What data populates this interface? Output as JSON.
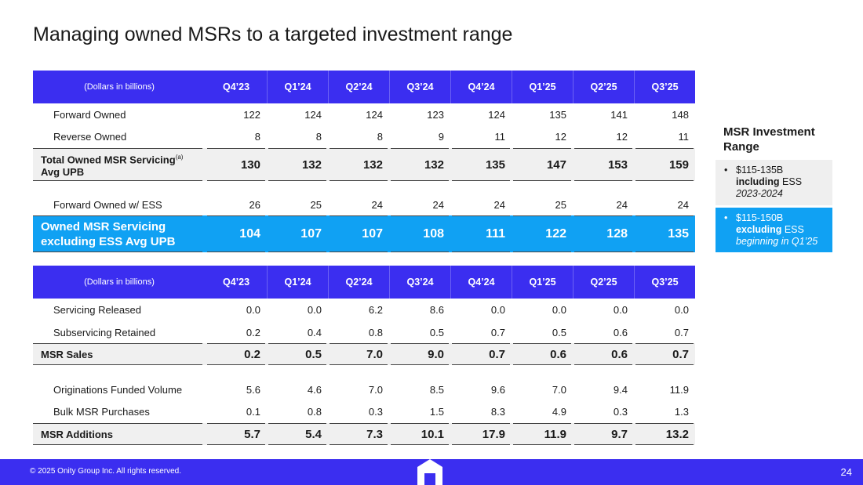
{
  "title": "Managing owned MSRs to a targeted investment range",
  "tables": [
    {
      "header": [
        "(Dollars in billions)",
        "Q4’23",
        "Q1’24",
        "Q2’24",
        "Q3’24",
        "Q4’24",
        "Q1’25",
        "Q2’25",
        "Q3’25"
      ],
      "rows": [
        {
          "label": "Forward Owned",
          "values": [
            "122",
            "124",
            "124",
            "123",
            "124",
            "135",
            "141",
            "148"
          ]
        },
        {
          "label": "Reverse Owned",
          "values": [
            "8",
            "8",
            "8",
            "9",
            "11",
            "12",
            "12",
            "11"
          ]
        },
        {
          "label": "Total Owned MSR Servicing",
          "label_note": "(a)",
          "label_line2": "Avg UPB",
          "values": [
            "130",
            "132",
            "132",
            "132",
            "135",
            "147",
            "153",
            "159"
          ]
        },
        {
          "label": "Forward Owned w/ ESS",
          "values": [
            "26",
            "25",
            "24",
            "24",
            "24",
            "25",
            "24",
            "24"
          ]
        },
        {
          "label": "Owned MSR Servicing excluding ESS Avg UPB",
          "values": [
            "104",
            "107",
            "107",
            "108",
            "111",
            "122",
            "128",
            "135"
          ]
        }
      ]
    },
    {
      "header": [
        "(Dollars in billions)",
        "Q4’23",
        "Q1’24",
        "Q2’24",
        "Q3’24",
        "Q4’24",
        "Q1’25",
        "Q2’25",
        "Q3’25"
      ],
      "rows": [
        {
          "label": "Servicing Released",
          "values": [
            "0.0",
            "0.0",
            "6.2",
            "8.6",
            "0.0",
            "0.0",
            "0.0",
            "0.0"
          ]
        },
        {
          "label": "Subservicing Retained",
          "values": [
            "0.2",
            "0.4",
            "0.8",
            "0.5",
            "0.7",
            "0.5",
            "0.6",
            "0.7"
          ]
        },
        {
          "label": "MSR Sales",
          "values": [
            "0.2",
            "0.5",
            "7.0",
            "9.0",
            "0.7",
            "0.6",
            "0.6",
            "0.7"
          ]
        },
        {
          "label": "Originations Funded Volume",
          "values": [
            "5.6",
            "4.6",
            "7.0",
            "8.5",
            "9.6",
            "7.0",
            "9.4",
            "11.9"
          ]
        },
        {
          "label": "Bulk MSR Purchases",
          "values": [
            "0.1",
            "0.8",
            "0.3",
            "1.5",
            "8.3",
            "4.9",
            "0.3",
            "1.3"
          ]
        },
        {
          "label": "MSR Additions",
          "values": [
            "5.7",
            "5.4",
            "7.3",
            "10.1",
            "17.9",
            "11.9",
            "9.7",
            "13.2"
          ]
        }
      ]
    }
  ],
  "side": {
    "title": "MSR Investment Range",
    "boxes": [
      {
        "range": "$115-135B",
        "emphasis": "including",
        "rest": "ESS",
        "period": "2023-2024"
      },
      {
        "range": "$115-150B",
        "emphasis": "excluding",
        "rest": "ESS",
        "period": "beginning in Q1’25"
      }
    ]
  },
  "footer": {
    "copyright": "© 2025 Onity Group Inc. All rights reserved.",
    "page": "24"
  }
}
